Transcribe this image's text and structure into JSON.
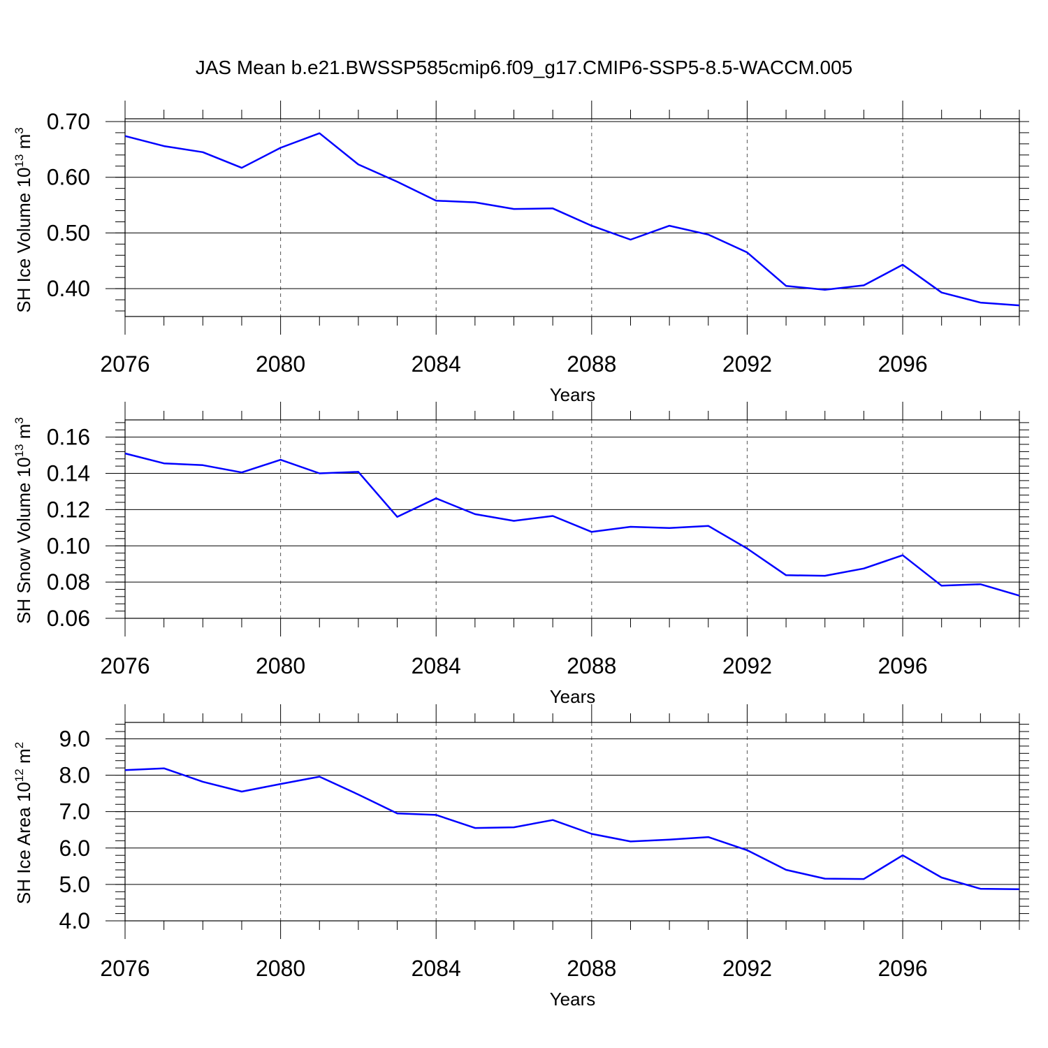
{
  "title": "JAS Mean b.e21.BWSSP585cmip6.f09_g17.CMIP6-SSP5-8.5-WACCM.005",
  "line_color": "#0000ff",
  "chart_data": [
    {
      "type": "line",
      "ylabel": "SH Ice Volume",
      "ylabel_unit": "10",
      "ylabel_exp": "13",
      "ylabel_m": "m",
      "ylabel_m_exp": "3",
      "xlabel": "Years",
      "ylim": [
        0.35,
        0.705
      ],
      "yticks": [
        0.4,
        0.5,
        0.6,
        0.7
      ],
      "ytick_labels": [
        "0.40",
        "0.50",
        "0.60",
        "0.70"
      ],
      "ydecimals": 2,
      "xlim": [
        2076,
        2099
      ],
      "xticks": [
        2076,
        2080,
        2084,
        2088,
        2092,
        2096
      ],
      "xtick_labels": [
        "2076",
        "2080",
        "2084",
        "2088",
        "2092",
        "2096"
      ],
      "x": [
        2076,
        2077,
        2078,
        2079,
        2080,
        2081,
        2082,
        2083,
        2084,
        2085,
        2086,
        2087,
        2088,
        2089,
        2090,
        2091,
        2092,
        2093,
        2094,
        2095,
        2096,
        2097,
        2098,
        2099
      ],
      "series": [
        {
          "values": [
            0.674,
            0.656,
            0.645,
            0.617,
            0.653,
            0.679,
            0.623,
            0.592,
            0.558,
            0.555,
            0.543,
            0.544,
            0.513,
            0.488,
            0.513,
            0.497,
            0.465,
            0.405,
            0.398,
            0.406,
            0.443,
            0.393,
            0.375,
            0.37
          ]
        }
      ]
    },
    {
      "type": "line",
      "ylabel": "SH Snow Volume",
      "ylabel_unit": "10",
      "ylabel_exp": "13",
      "ylabel_m": "m",
      "ylabel_m_exp": "3",
      "xlabel": "Years",
      "ylim": [
        0.06,
        0.1695
      ],
      "yticks": [
        0.06,
        0.08,
        0.1,
        0.12,
        0.14,
        0.16
      ],
      "ytick_labels": [
        "0.06",
        "0.08",
        "0.10",
        "0.12",
        "0.14",
        "0.16"
      ],
      "ydecimals": 2,
      "xlim": [
        2076,
        2099
      ],
      "xticks": [
        2076,
        2080,
        2084,
        2088,
        2092,
        2096
      ],
      "xtick_labels": [
        "2076",
        "2080",
        "2084",
        "2088",
        "2092",
        "2096"
      ],
      "x": [
        2076,
        2077,
        2078,
        2079,
        2080,
        2081,
        2082,
        2083,
        2084,
        2085,
        2086,
        2087,
        2088,
        2089,
        2090,
        2091,
        2092,
        2093,
        2094,
        2095,
        2096,
        2097,
        2098,
        2099
      ],
      "series": [
        {
          "values": [
            0.151,
            0.1455,
            0.1445,
            0.1405,
            0.1475,
            0.14,
            0.1408,
            0.116,
            0.1262,
            0.1175,
            0.1138,
            0.1165,
            0.1077,
            0.1105,
            0.1098,
            0.111,
            0.0985,
            0.0838,
            0.0835,
            0.0875,
            0.0948,
            0.078,
            0.0788,
            0.0725
          ]
        }
      ]
    },
    {
      "type": "line",
      "ylabel": "SH Ice Area",
      "ylabel_unit": "10",
      "ylabel_exp": "12",
      "ylabel_m": "m",
      "ylabel_m_exp": "2",
      "xlabel": "Years",
      "ylim": [
        4.0,
        9.45
      ],
      "yticks": [
        4.0,
        5.0,
        6.0,
        7.0,
        8.0,
        9.0
      ],
      "ytick_labels": [
        "4.0",
        "5.0",
        "6.0",
        "7.0",
        "8.0",
        "9.0"
      ],
      "ydecimals": 1,
      "xlim": [
        2076,
        2099
      ],
      "xticks": [
        2076,
        2080,
        2084,
        2088,
        2092,
        2096
      ],
      "xtick_labels": [
        "2076",
        "2080",
        "2084",
        "2088",
        "2092",
        "2096"
      ],
      "x": [
        2076,
        2077,
        2078,
        2079,
        2080,
        2081,
        2082,
        2083,
        2084,
        2085,
        2086,
        2087,
        2088,
        2089,
        2090,
        2091,
        2092,
        2093,
        2094,
        2095,
        2096,
        2097,
        2098,
        2099
      ],
      "series": [
        {
          "values": [
            8.14,
            8.19,
            7.82,
            7.55,
            7.76,
            7.96,
            7.47,
            6.95,
            6.91,
            6.55,
            6.57,
            6.77,
            6.39,
            6.18,
            6.23,
            6.3,
            5.94,
            5.4,
            5.16,
            5.15,
            5.8,
            5.19,
            4.88,
            4.87
          ]
        }
      ]
    }
  ]
}
